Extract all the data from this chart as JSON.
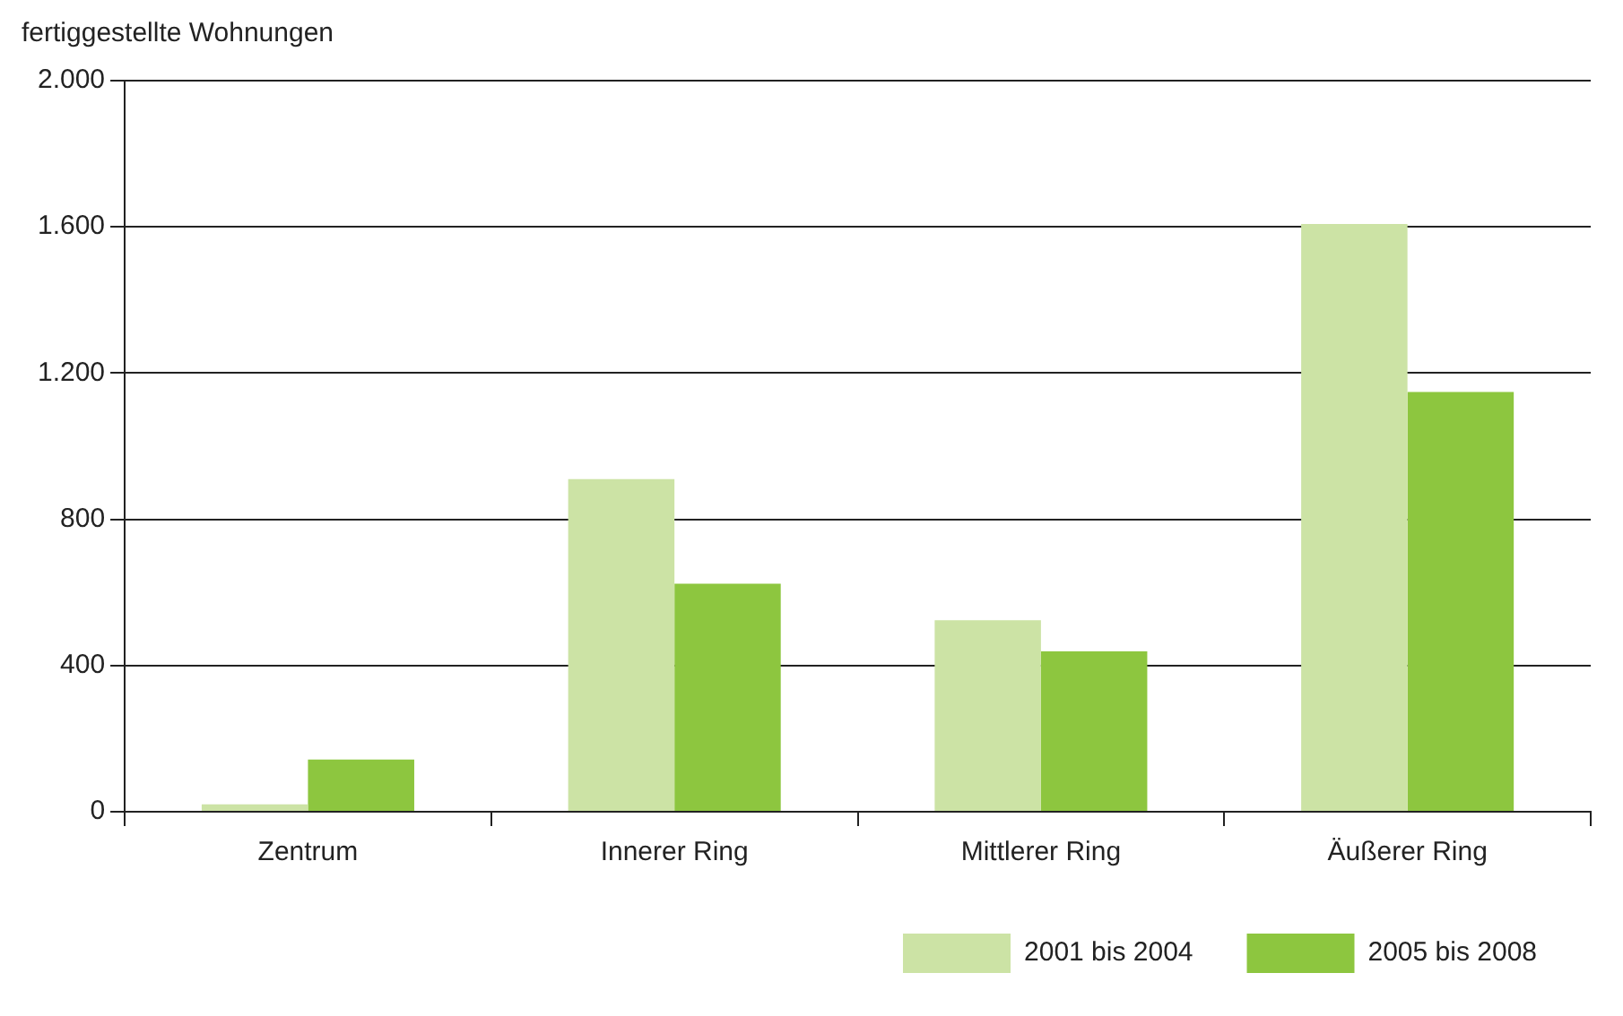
{
  "chart_data": {
    "type": "bar",
    "ylabel": "fertiggestellte Wohnungen",
    "categories": [
      "Zentrum",
      "Innerer Ring",
      "Mittlerer Ring",
      "Äußerer Ring"
    ],
    "series": [
      {
        "name": "2001 bis 2004",
        "color": "#cce3a5",
        "values": [
          20,
          910,
          524,
          1608
        ]
      },
      {
        "name": "2005 bis 2008",
        "color": "#8dc63f",
        "values": [
          143,
          624,
          439,
          1148
        ]
      }
    ],
    "ylim": [
      0,
      2000
    ],
    "yticks": [
      {
        "value": 0,
        "label": "0"
      },
      {
        "value": 400,
        "label": "400"
      },
      {
        "value": 800,
        "label": "800"
      },
      {
        "value": 1200,
        "label": "1.200"
      },
      {
        "value": 1600,
        "label": "1.600"
      },
      {
        "value": 2000,
        "label": "2.000"
      }
    ],
    "grid": "y",
    "legend": "bottom right"
  }
}
